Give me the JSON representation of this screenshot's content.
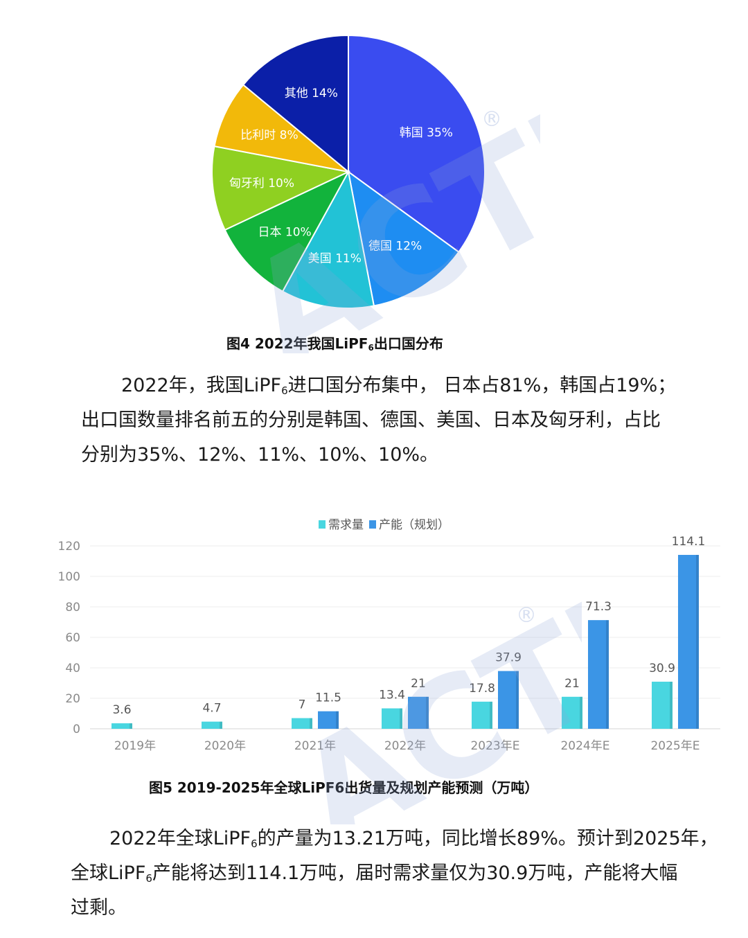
{
  "figure4": {
    "caption_pre": "图4  2022年我国LiPF",
    "caption_sub": "6",
    "caption_post": "出口国分布"
  },
  "paragraph1": {
    "line1_pre": "2022年，我国LiPF",
    "line1_sub": "6",
    "line1_post": "进口国分布集中， 日本占81%，韩国占19%；",
    "line2": "出口国数量排名前五的分别是韩国、德国、美国、日本及匈牙利，占比",
    "line3": "分别为35%、12%、11%、10%、10%。"
  },
  "figure5": {
    "caption": "图5   2019-2025年全球LiPF6出货量及规划产能预测（万吨）"
  },
  "paragraph2": {
    "line1_pre": "2022年全球LiPF",
    "line1_sub": "6",
    "line1_post": "的产量为13.21万吨，同比增长89%。预计到2025年，",
    "line2_pre": "全球LiPF",
    "line2_sub": "6",
    "line2_post": "产能将达到114.1万吨，届时需求量仅为30.9万吨，产能将大幅",
    "line3": "过剩。"
  },
  "watermark": {
    "text": "ACTI",
    "registered": "®"
  },
  "chart_data": [
    {
      "type": "pie",
      "title": "",
      "slices": [
        {
          "label": "韩国",
          "display": "韩国 35%",
          "value": 35,
          "color": "#3a4cf0"
        },
        {
          "label": "德国",
          "display": "德国 12%",
          "value": 12,
          "color": "#1e8df2"
        },
        {
          "label": "美国",
          "display": "美国 11%",
          "value": 11,
          "color": "#22c2d6"
        },
        {
          "label": "日本",
          "display": "日本 10%",
          "value": 10,
          "color": "#12b33c"
        },
        {
          "label": "匈牙利",
          "display": "匈牙利 10%",
          "value": 10,
          "color": "#8fd021"
        },
        {
          "label": "比利时",
          "display": "比利时 8%",
          "value": 8,
          "color": "#f2b90a"
        },
        {
          "label": "其他",
          "display": "其他 14%",
          "value": 14,
          "color": "#0b1fa8"
        }
      ]
    },
    {
      "type": "bar",
      "title": "",
      "categories": [
        "2019年",
        "2020年",
        "2021年",
        "2022年",
        "2023年E",
        "2024年E",
        "2025年E"
      ],
      "series": [
        {
          "name": "需求量",
          "color": "#49d6e0",
          "values": [
            3.6,
            4.7,
            7,
            13.4,
            17.8,
            21,
            30.9
          ]
        },
        {
          "name": "产能（规划）",
          "color": "#3b95e6",
          "values": [
            null,
            null,
            11.5,
            21,
            37.9,
            71.3,
            114.1
          ]
        }
      ],
      "ylim": [
        0,
        120
      ],
      "yticks": [
        0,
        20,
        40,
        60,
        80,
        100,
        120
      ],
      "legend": "top-center",
      "grid": true
    }
  ]
}
